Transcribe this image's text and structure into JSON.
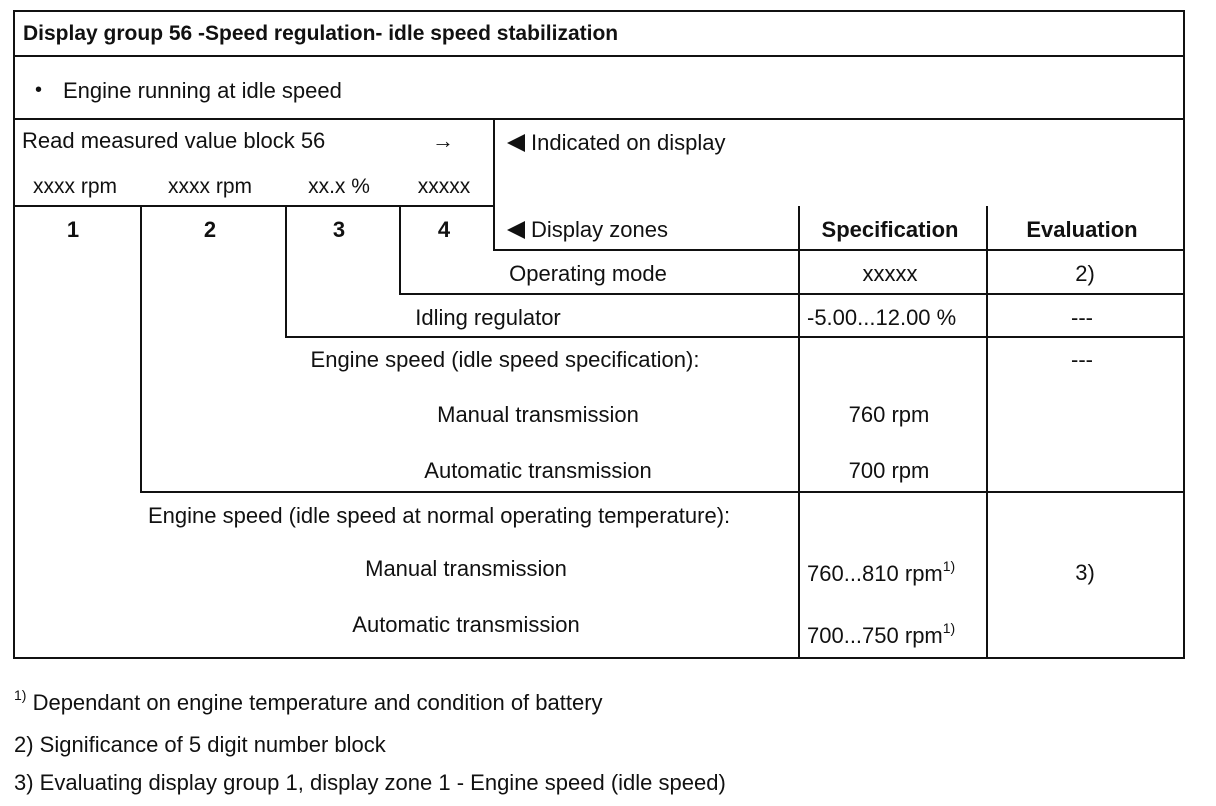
{
  "header": {
    "title": "Display group 56 -Speed regulation- idle speed stabilization"
  },
  "condition": {
    "bullet": "•",
    "text": "Engine running at idle speed"
  },
  "read_block": {
    "label": "Read measured value block 56",
    "arrow": "→",
    "values": [
      "xxxx rpm",
      "xxxx rpm",
      "xx.x %",
      "xxxxx"
    ]
  },
  "indicated_label": "Indicated on display",
  "zone_numbers": [
    "1",
    "2",
    "3",
    "4"
  ],
  "columns": {
    "display_zones": "Display zones",
    "specification": "Specification",
    "evaluation": "Evaluation"
  },
  "rows": {
    "operating_mode": {
      "label": "Operating mode",
      "spec": "xxxxx",
      "eval": "2)"
    },
    "idling_regulator": {
      "label": "Idling regulator",
      "spec": "-5.00...12.00 %",
      "eval": "---"
    },
    "engine_speed_spec": {
      "label": "Engine speed (idle speed specification):",
      "eval": "---",
      "manual_label": "Manual transmission",
      "manual_spec": "760 rpm",
      "auto_label": "Automatic transmission",
      "auto_spec": "700 rpm"
    },
    "engine_speed_temp": {
      "label": "Engine speed (idle speed at normal operating temperature):",
      "eval": "3)",
      "manual_label": "Manual transmission",
      "manual_spec": "760...810 rpm",
      "manual_sup": "1)",
      "auto_label": "Automatic transmission",
      "auto_spec": "700...750 rpm",
      "auto_sup": "1)"
    }
  },
  "footnotes": {
    "f1_mark": "1)",
    "f1_text": "Dependant on engine temperature and condition of battery",
    "f2_text": "2) Significance of 5 digit number block",
    "f3_text": "3) Evaluating display group 1, display zone 1 - Engine speed (idle speed)"
  }
}
